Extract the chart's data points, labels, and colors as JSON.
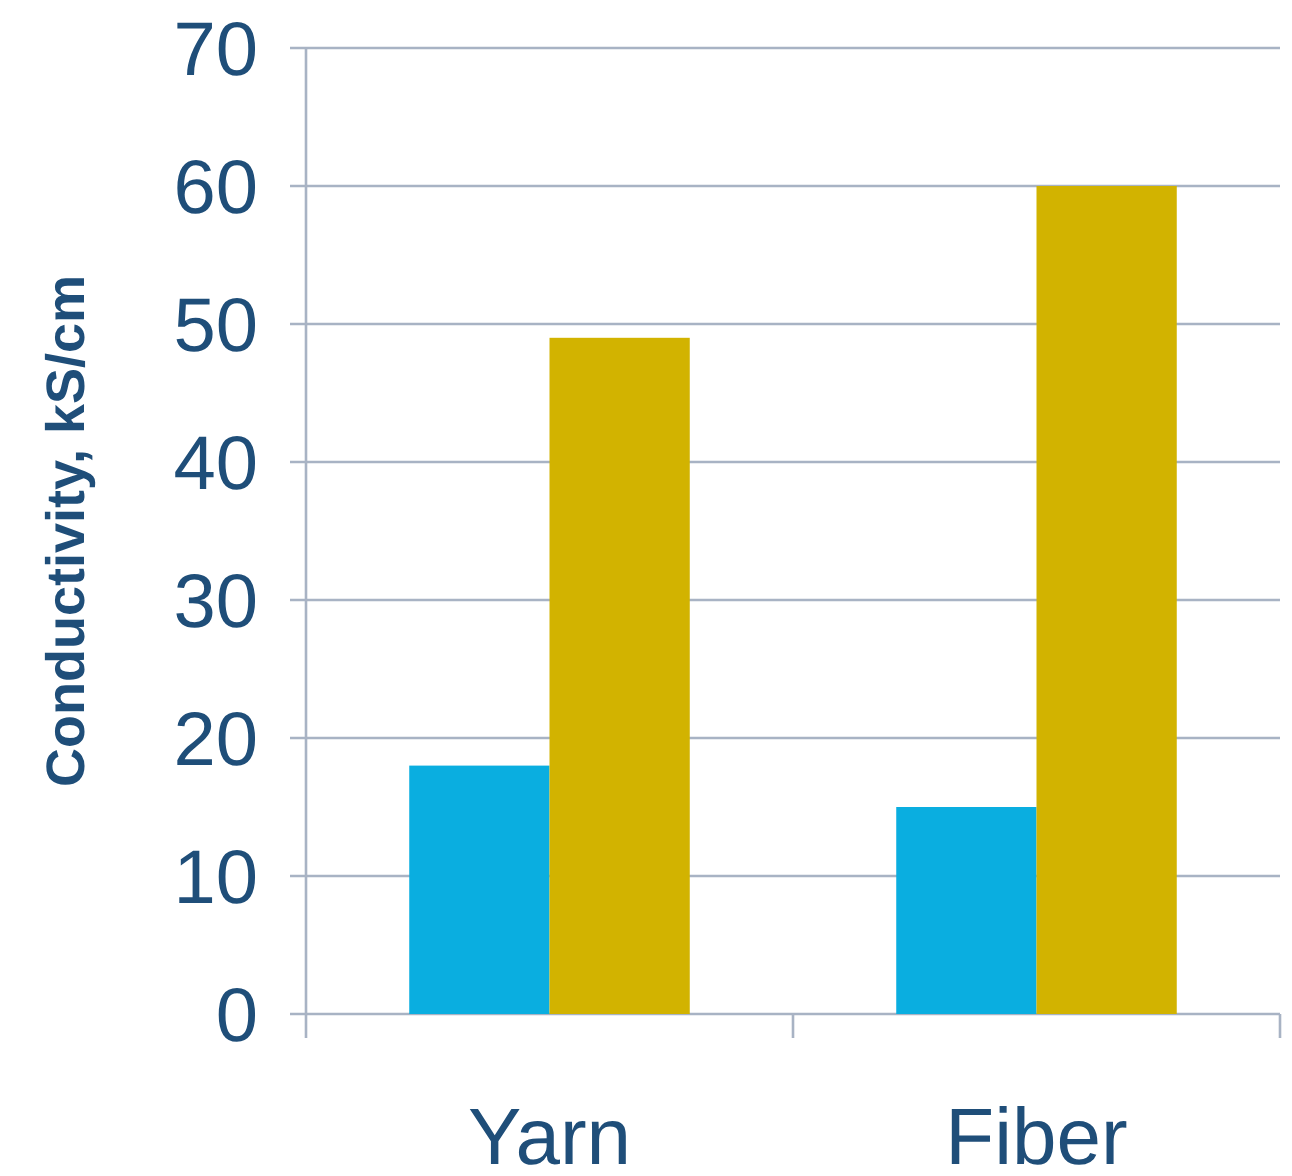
{
  "chart_data": {
    "type": "bar",
    "ylabel": "Conductivity, kS/cm",
    "categories": [
      "Yarn",
      "Fiber"
    ],
    "series": [
      {
        "color": "#0aaee0",
        "values": [
          18,
          15
        ]
      },
      {
        "color": "#d2b300",
        "values": [
          49,
          60
        ]
      }
    ],
    "ylim": [
      0,
      70
    ],
    "yticks": [
      0,
      10,
      20,
      30,
      40,
      50,
      60,
      70
    ],
    "grid": "y"
  }
}
